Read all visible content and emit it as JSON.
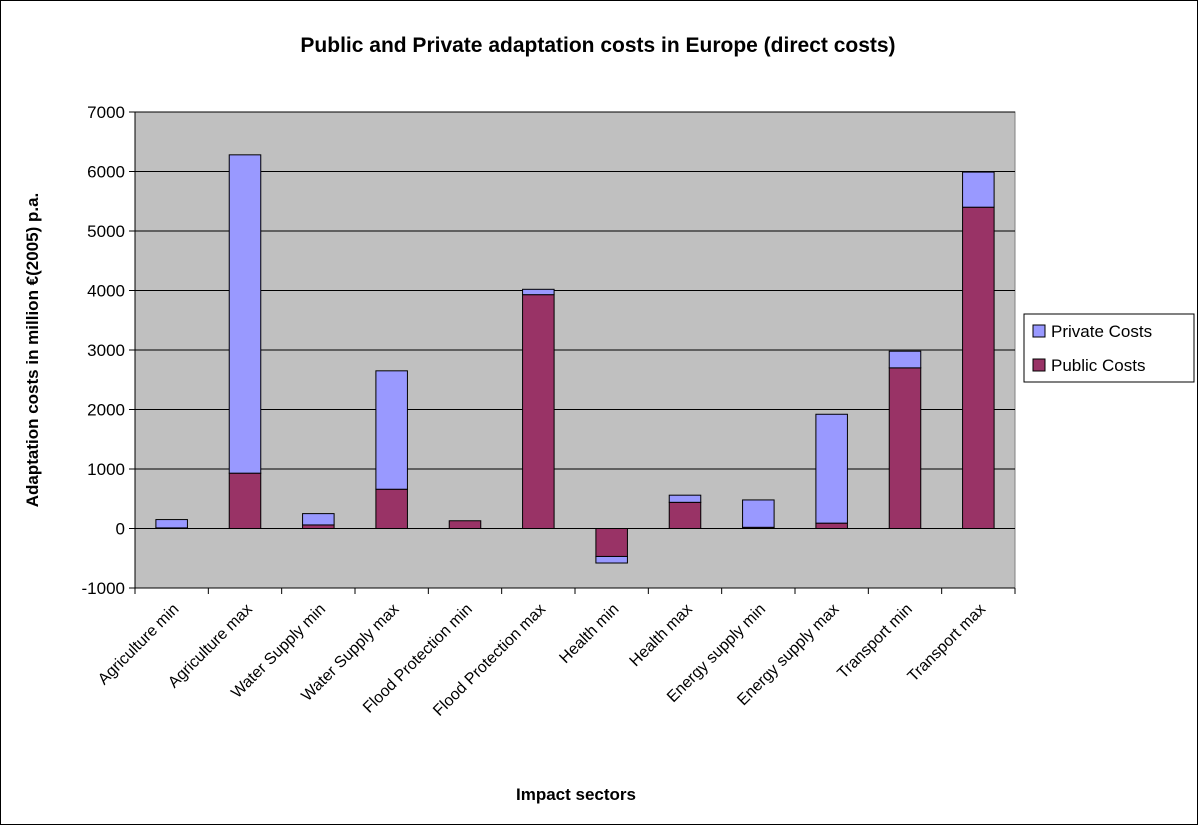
{
  "chart_data": {
    "type": "bar",
    "stacked": true,
    "title": "Public and Private adaptation costs in Europe (direct costs)",
    "xlabel": "Impact sectors",
    "ylabel": "Adaptation costs in million €(2005) p.a.",
    "ylim": [
      -1000,
      7000
    ],
    "yticks": [
      -1000,
      0,
      1000,
      2000,
      3000,
      4000,
      5000,
      6000,
      7000
    ],
    "grid": true,
    "legend_position": "right",
    "categories": [
      "Agriculture min",
      "Agriculture max",
      "Water Supply min",
      "Water Supply max",
      "Flood Protection min",
      "Flood Protection max",
      "Health min",
      "Health max",
      "Energy supply min",
      "Energy supply max",
      "Transport min",
      "Transport max"
    ],
    "series": [
      {
        "name": "Public Costs",
        "color": "#993366",
        "values": [
          10,
          930,
          60,
          660,
          130,
          3930,
          -470,
          440,
          20,
          90,
          2700,
          5400
        ]
      },
      {
        "name": "Private Costs",
        "color": "#9999FF",
        "values": [
          140,
          5350,
          190,
          1990,
          0,
          90,
          -110,
          120,
          460,
          1830,
          280,
          590
        ]
      }
    ],
    "legend": [
      "Private Costs",
      "Public Costs"
    ],
    "colors": {
      "plot_bg": "#C0C0C0",
      "public": "#993366",
      "private": "#9999FF"
    }
  }
}
